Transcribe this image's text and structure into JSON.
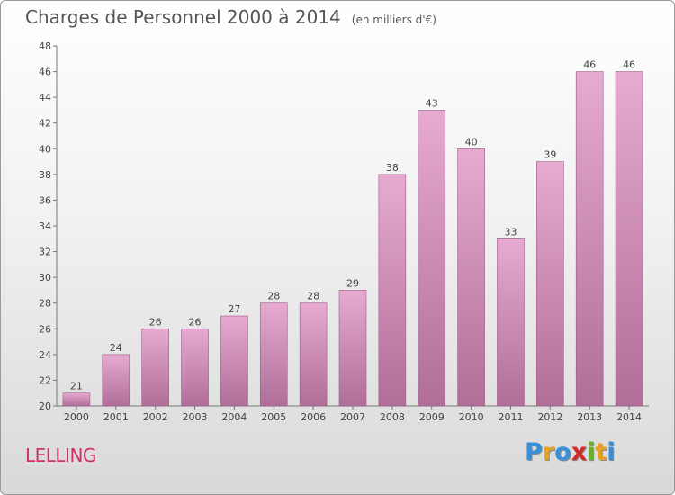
{
  "header": {
    "title": "Charges de Personnel 2000 à 2014",
    "subtitle": "(en milliers d'€)"
  },
  "footer": {
    "place": "LELLING",
    "logo": {
      "letters": [
        "P",
        "r",
        "o",
        "x",
        "i",
        "t",
        "i"
      ],
      "colors": [
        "#3a8fd6",
        "#e8a020",
        "#3a8fd6",
        "#d02a2a",
        "#6ab02a",
        "#e8a020",
        "#3a8fd6"
      ]
    }
  },
  "colors": {
    "bar_top": "#e7aad0",
    "bar_bottom": "#b06e98",
    "bar_stroke": "#9c5c86"
  },
  "chart_data": {
    "type": "bar",
    "title": "Charges de Personnel 2000 à 2014",
    "subtitle": "(en milliers d'€)",
    "categories": [
      "2000",
      "2001",
      "2002",
      "2003",
      "2004",
      "2005",
      "2006",
      "2007",
      "2008",
      "2009",
      "2010",
      "2011",
      "2012",
      "2013",
      "2014"
    ],
    "values": [
      21,
      24,
      26,
      26,
      27,
      28,
      28,
      29,
      38,
      43,
      40,
      33,
      39,
      46,
      46
    ],
    "ylim": [
      20,
      48
    ],
    "yticks": [
      20,
      22,
      24,
      26,
      28,
      30,
      32,
      34,
      36,
      38,
      40,
      42,
      44,
      46,
      48
    ],
    "grid": false,
    "legend": "none"
  }
}
